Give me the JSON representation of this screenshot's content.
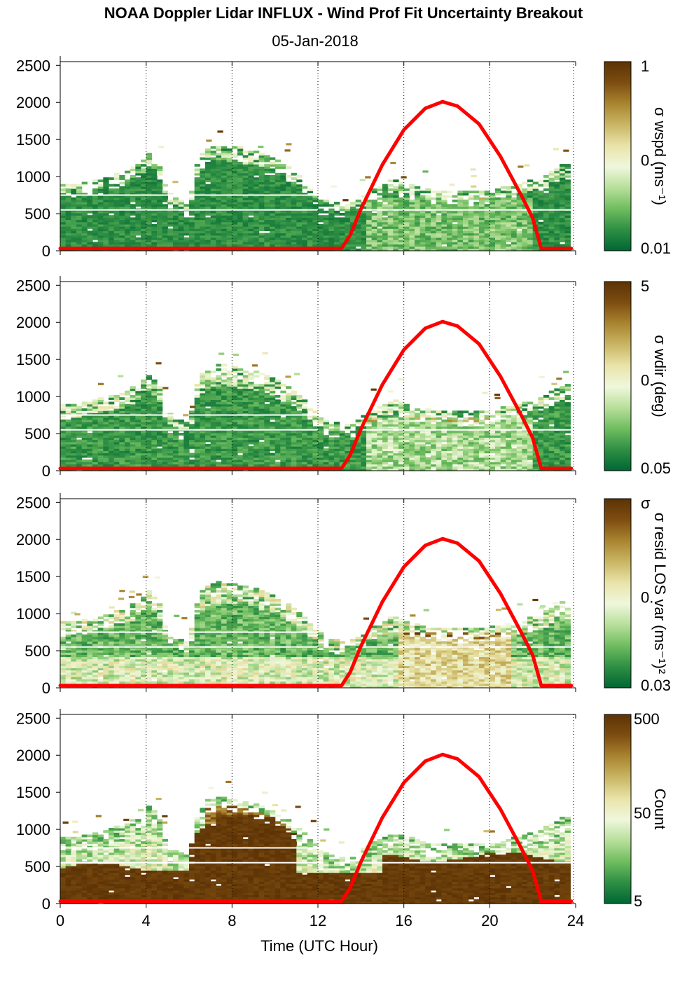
{
  "title": "NOAA Doppler Lidar INFLUX - Wind Prof Fit Uncertainty Breakout",
  "subtitle": "05-Jan-2018",
  "xaxis": {
    "label": "Time (UTC Hour)",
    "ticks": [
      0,
      4,
      8,
      12,
      16,
      20,
      24
    ],
    "range": [
      0,
      24
    ],
    "grid": "dotted vertical at 4-hour ticks"
  },
  "yaxis": {
    "ticks": [
      0,
      500,
      1000,
      1500,
      2000,
      2500
    ],
    "range": [
      0,
      2550
    ]
  },
  "colors": {
    "line": "#ff0000",
    "colormap": [
      "#006633",
      "#2e8f44",
      "#6fbd5f",
      "#b7df9a",
      "#eff7dc",
      "#e9e3a8",
      "#c9b564",
      "#a98430",
      "#7d4d10",
      "#5c3306"
    ]
  },
  "chart_data": [
    {
      "type": "heatmap",
      "panel": 1,
      "colorbar_label": "σ wspd (ms⁻¹)",
      "colorbar_ticks": [
        "1",
        "0.",
        "0.01"
      ],
      "scale": "log",
      "overlay_line": {
        "type": "line",
        "x": [
          0,
          13.1,
          13.5,
          14,
          15,
          16,
          17,
          17.8,
          18.5,
          19.5,
          20.5,
          21.5,
          22.0,
          22.4,
          23.8
        ],
        "y": [
          30,
          30,
          210,
          560,
          1160,
          1630,
          1920,
          2010,
          1950,
          1710,
          1270,
          730,
          440,
          30,
          30
        ]
      }
    },
    {
      "type": "heatmap",
      "panel": 2,
      "colorbar_label": "σ wdir (deg)",
      "colorbar_ticks": [
        "5",
        "0.",
        "0.05"
      ],
      "scale": "log",
      "overlay_line": {
        "type": "line",
        "x": [
          0,
          13.1,
          13.5,
          14,
          15,
          16,
          17,
          17.8,
          18.5,
          19.5,
          20.5,
          21.5,
          22.0,
          22.4,
          23.8
        ],
        "y": [
          30,
          30,
          210,
          560,
          1160,
          1630,
          1920,
          2010,
          1950,
          1710,
          1270,
          730,
          440,
          30,
          30
        ]
      }
    },
    {
      "type": "heatmap",
      "panel": 3,
      "colorbar_label": "σ resid LOS var (ms⁻¹)²",
      "colorbar_ticks": [
        "σ",
        "0.",
        "0.03"
      ],
      "scale": "log",
      "overlay_line": {
        "type": "line",
        "x": [
          0,
          13.1,
          13.5,
          14,
          15,
          16,
          17,
          17.8,
          18.5,
          19.5,
          20.5,
          21.5,
          22.0,
          22.4,
          23.8
        ],
        "y": [
          30,
          30,
          210,
          560,
          1160,
          1630,
          1920,
          2010,
          1950,
          1710,
          1270,
          730,
          440,
          30,
          30
        ]
      }
    },
    {
      "type": "heatmap",
      "panel": 4,
      "colorbar_label": "Count",
      "colorbar_ticks": [
        "500",
        "50",
        "5"
      ],
      "scale": "log",
      "overlay_line": {
        "type": "line",
        "x": [
          0,
          13.1,
          13.5,
          14,
          15,
          16,
          17,
          17.8,
          18.5,
          19.5,
          20.5,
          21.5,
          22.0,
          22.4,
          23.8
        ],
        "y": [
          30,
          30,
          210,
          560,
          1160,
          1630,
          1920,
          2010,
          1950,
          1710,
          1270,
          730,
          440,
          30,
          30
        ]
      }
    }
  ]
}
